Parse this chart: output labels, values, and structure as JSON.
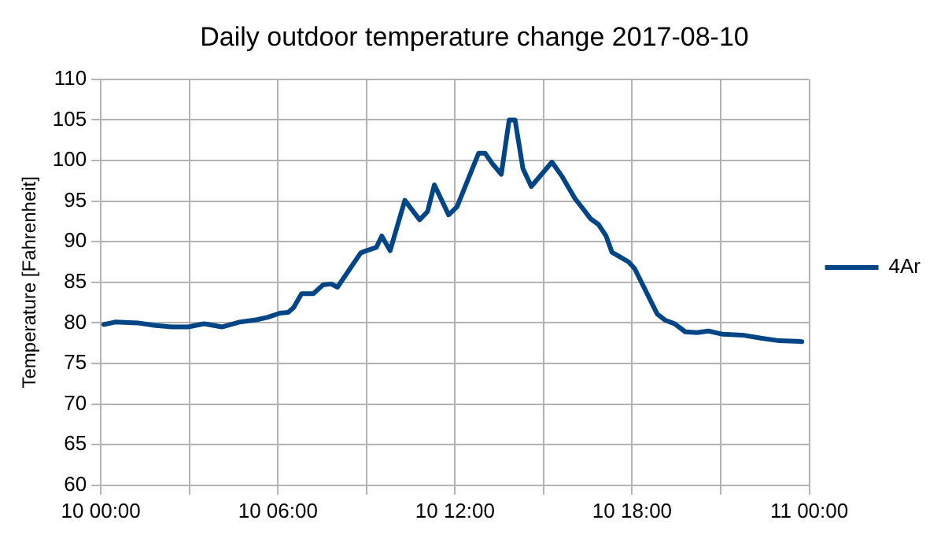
{
  "chart_data": {
    "type": "line",
    "title": "Daily outdoor temperature change 2017-08-10",
    "ylabel": "Temperature [Fahrenheit]",
    "x": [
      "2017-08-10T00:06",
      "2017-08-10T00:29",
      "2017-08-10T01:15",
      "2017-08-10T01:48",
      "2017-08-10T02:24",
      "2017-08-10T02:58",
      "2017-08-10T03:30",
      "2017-08-10T04:06",
      "2017-08-10T04:42",
      "2017-08-10T05:18",
      "2017-08-10T05:40",
      "2017-08-10T06:04",
      "2017-08-10T06:21",
      "2017-08-10T06:32",
      "2017-08-10T06:48",
      "2017-08-10T07:12",
      "2017-08-10T07:32",
      "2017-08-10T07:48",
      "2017-08-10T08:01",
      "2017-08-10T08:48",
      "2017-08-10T09:00",
      "2017-08-10T09:20",
      "2017-08-10T09:31",
      "2017-08-10T09:48",
      "2017-08-10T10:18",
      "2017-08-10T10:48",
      "2017-08-10T11:04",
      "2017-08-10T11:18",
      "2017-08-10T11:47",
      "2017-08-10T12:04",
      "2017-08-10T12:48",
      "2017-08-10T13:01",
      "2017-08-10T13:16",
      "2017-08-10T13:34",
      "2017-08-10T13:50",
      "2017-08-10T14:02",
      "2017-08-10T14:18",
      "2017-08-10T14:35",
      "2017-08-10T15:17",
      "2017-08-10T15:38",
      "2017-08-10T16:04",
      "2017-08-10T16:17",
      "2017-08-10T16:36",
      "2017-08-10T16:52",
      "2017-08-10T17:07",
      "2017-08-10T17:19",
      "2017-08-10T17:39",
      "2017-08-10T17:53",
      "2017-08-10T18:05",
      "2017-08-10T18:51",
      "2017-08-10T19:08",
      "2017-08-10T19:26",
      "2017-08-10T19:48",
      "2017-08-10T20:12",
      "2017-08-10T20:35",
      "2017-08-10T21:04",
      "2017-08-10T21:44",
      "2017-08-10T22:24",
      "2017-08-10T22:59",
      "2017-08-10T23:45"
    ],
    "series": [
      {
        "name": "4Ar",
        "color": "#004586",
        "values": [
          79.8,
          80.1,
          80.0,
          79.7,
          79.5,
          79.5,
          79.9,
          79.5,
          80.1,
          80.4,
          80.7,
          81.2,
          81.3,
          81.9,
          83.6,
          83.6,
          84.7,
          84.8,
          84.4,
          88.6,
          88.9,
          89.3,
          90.7,
          88.9,
          95.1,
          92.7,
          93.7,
          97.0,
          93.3,
          94.3,
          100.9,
          100.9,
          99.6,
          98.3,
          105.0,
          105.0,
          99.0,
          96.8,
          99.8,
          98.0,
          95.3,
          94.3,
          92.8,
          92.1,
          90.7,
          88.7,
          88.0,
          87.5,
          86.7,
          81.1,
          80.3,
          79.9,
          78.9,
          78.8,
          79.0,
          78.6,
          78.5,
          78.1,
          77.8,
          77.7
        ]
      }
    ],
    "xlim": [
      "2017-08-10T00:00",
      "2017-08-11T00:00"
    ],
    "xticks": [
      {
        "value": "2017-08-10T00:00",
        "label": "10 00:00"
      },
      {
        "value": "2017-08-10T03:00",
        "label": null
      },
      {
        "value": "2017-08-10T06:00",
        "label": "10 06:00"
      },
      {
        "value": "2017-08-10T09:00",
        "label": null
      },
      {
        "value": "2017-08-10T12:00",
        "label": "10 12:00"
      },
      {
        "value": "2017-08-10T15:00",
        "label": null
      },
      {
        "value": "2017-08-10T18:00",
        "label": "10 18:00"
      },
      {
        "value": "2017-08-10T21:00",
        "label": null
      },
      {
        "value": "2017-08-11T00:00",
        "label": "11 00:00"
      }
    ],
    "ylim": [
      60,
      110
    ],
    "yticks": [
      60,
      65,
      70,
      75,
      80,
      85,
      90,
      95,
      100,
      105,
      110
    ],
    "grid": true,
    "legend": "right",
    "marker": "none",
    "line_style": "solid"
  }
}
